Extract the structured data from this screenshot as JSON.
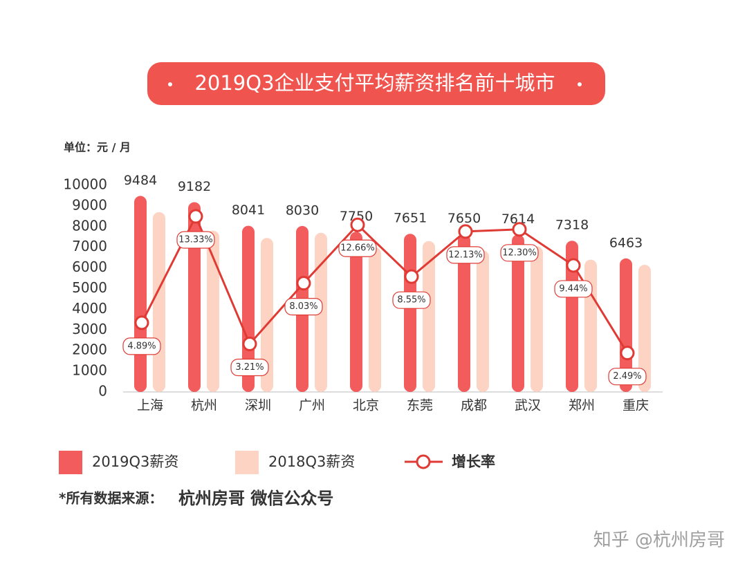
{
  "chart_data": {
    "type": "bar",
    "title": "2019Q3企业支付平均薪资排名前十城市",
    "y_label": "单位：元 / 月",
    "categories": [
      "上海",
      "杭州",
      "深圳",
      "广州",
      "北京",
      "东莞",
      "成都",
      "武汉",
      "郑州",
      "重庆"
    ],
    "series": [
      {
        "name": "2019Q3薪资",
        "color": "#f25c5c",
        "values": [
          9484,
          9182,
          8041,
          8030,
          7750,
          7651,
          7650,
          7614,
          7318,
          6463
        ]
      },
      {
        "name": "2018Q3薪资",
        "color": "#fdd3c3",
        "values": [
          8700,
          7800,
          7450,
          7700,
          7000,
          7300,
          6850,
          7050,
          6400,
          6150
        ]
      },
      {
        "name": "增长率",
        "type": "line",
        "axis": "y2",
        "color": "#e03a34",
        "values": [
          4.89,
          13.33,
          3.21,
          8.03,
          12.66,
          8.55,
          12.13,
          12.3,
          9.44,
          2.49
        ],
        "value_labels": [
          "4.89%",
          "13.33%",
          "3.21%",
          "8.03%",
          "12.66%",
          "8.55%",
          "12.13%",
          "12.30%",
          "9.44%",
          "2.49%"
        ]
      }
    ],
    "ylim": [
      0,
      10000
    ],
    "yticks": [
      0,
      1000,
      2000,
      3000,
      4000,
      5000,
      6000,
      7000,
      8000,
      9000,
      10000
    ],
    "y2lim": [
      -0.6,
      15.8
    ],
    "source_prefix": "*所有数据来源：",
    "source": "杭州房哥  微信公众号",
    "watermark": "知乎 @杭州房哥"
  }
}
